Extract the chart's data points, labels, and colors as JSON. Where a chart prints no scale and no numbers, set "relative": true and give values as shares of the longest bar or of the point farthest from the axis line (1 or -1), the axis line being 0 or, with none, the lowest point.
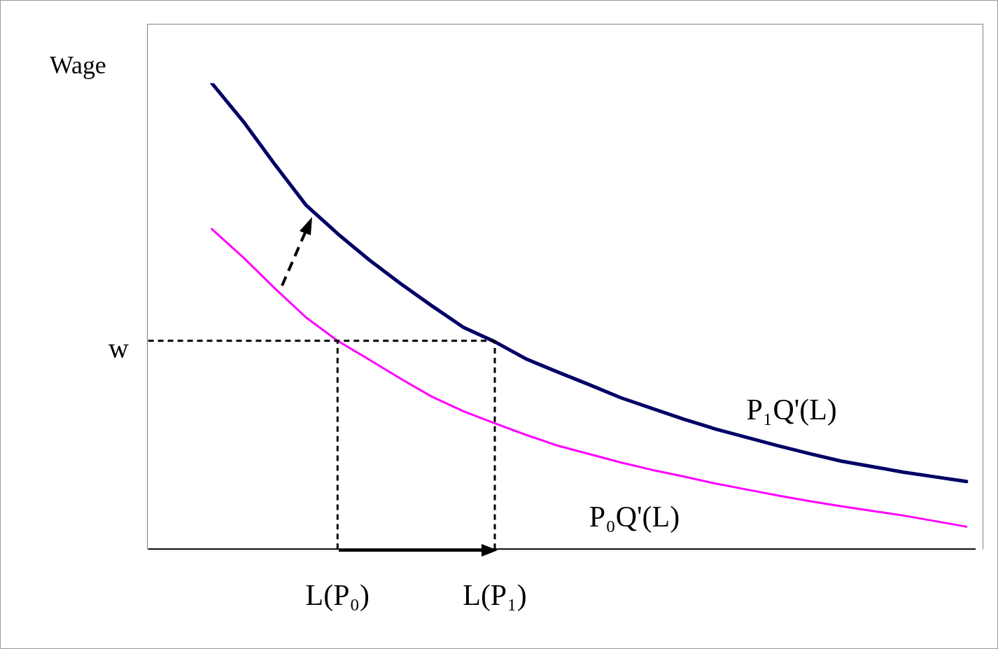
{
  "chart_data": {
    "type": "line",
    "relative": true,
    "ylabel": "Wage",
    "grid": false,
    "legend": false,
    "marker": "none",
    "line_style": "solid",
    "categories": [
      null,
      null,
      null,
      null,
      "L(P₀)",
      null,
      null,
      null,
      null,
      "L(P₁)",
      null,
      null,
      null,
      null,
      null,
      null,
      null,
      null,
      null,
      null,
      null,
      null,
      null,
      null,
      null
    ],
    "series": [
      {
        "name": "P₁Q'(L)",
        "color": "#000066",
        "values": [
          1,
          0.918,
          0.826,
          0.738,
          0.677,
          0.621,
          0.57,
          0.522,
          0.476,
          0.445,
          0.408,
          0.38,
          0.353,
          0.325,
          0.302,
          0.279,
          0.258,
          0.24,
          0.222,
          0.205,
          0.189,
          0.177,
          0.165,
          0.155,
          0.145
        ]
      },
      {
        "name": "P₀Q'(L)",
        "color": "#ff00ff",
        "values": [
          0.687,
          0.626,
          0.56,
          0.497,
          0.447,
          0.407,
          0.366,
          0.327,
          0.296,
          0.27,
          0.245,
          0.222,
          0.204,
          0.186,
          0.17,
          0.156,
          0.141,
          0.128,
          0.115,
          0.103,
          0.092,
          0.082,
          0.072,
          0.06,
          0.048
        ]
      }
    ],
    "ref_lines": [
      {
        "axis": "y",
        "value": 0.447,
        "label": "w",
        "line_style": "dashed",
        "color": "#000000"
      },
      {
        "axis": "x",
        "value": "L(P₀)",
        "line_style": "dashed",
        "color": "#000000"
      },
      {
        "axis": "x",
        "value": "L(P₁)",
        "line_style": "dashed",
        "color": "#000000"
      }
    ]
  }
}
